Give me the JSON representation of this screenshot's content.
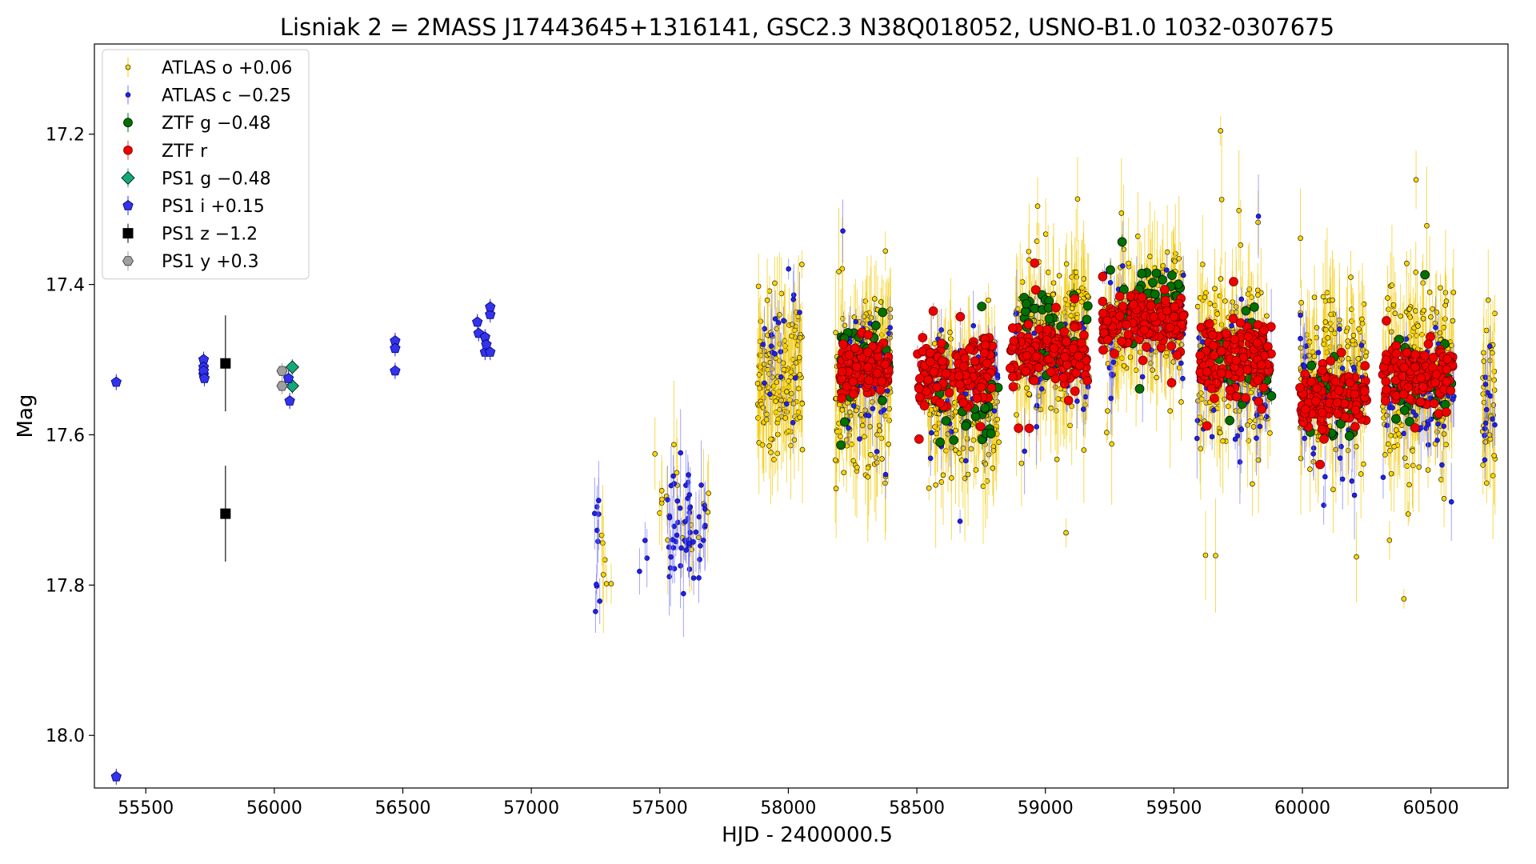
{
  "chart_data": {
    "type": "scatter",
    "title": "Lisniak 2 = 2MASS J17443645+1316141, GSC2.3 N38Q018052, USNO-B1.0 1032-0307675",
    "xlabel": "HJD - 2400000.5",
    "ylabel": "Mag",
    "xlim": [
      55300,
      60800
    ],
    "ylim": [
      18.07,
      17.08
    ],
    "y_inverted": true,
    "xticks": [
      55500,
      56000,
      56500,
      57000,
      57500,
      58000,
      58500,
      59000,
      59500,
      60000,
      60500
    ],
    "xtick_labels": [
      "55500",
      "56000",
      "56500",
      "57000",
      "57500",
      "58000",
      "58500",
      "59000",
      "59500",
      "60000",
      "60500"
    ],
    "yticks": [
      17.2,
      17.4,
      17.6,
      17.8,
      18.0
    ],
    "ytick_labels": [
      "17.2",
      "17.4",
      "17.6",
      "17.8",
      "18.0"
    ],
    "grid": false,
    "legend_position": "top-left",
    "series": [
      {
        "name": "ATLAS o +0.06",
        "marker": "circle-small",
        "color": "#ffd700",
        "edge": "#000000",
        "errcolor": "#f2c800",
        "seasons": [
          {
            "x": [
              57240,
              57320
            ],
            "center": 17.76,
            "spread": 0.06,
            "count": 6
          },
          {
            "x": [
              57480,
              57690
            ],
            "center": 17.7,
            "spread": 0.09,
            "count": 20
          },
          {
            "x": [
              57880,
              58060
            ],
            "center": 17.52,
            "spread": 0.08,
            "count": 150
          },
          {
            "x": [
              58180,
              58400
            ],
            "center": 17.53,
            "spread": 0.1,
            "count": 170
          },
          {
            "x": [
              58540,
              58820
            ],
            "center": 17.56,
            "spread": 0.08,
            "count": 170
          },
          {
            "x": [
              58880,
              59170
            ],
            "center": 17.48,
            "spread": 0.08,
            "count": 200
          },
          {
            "x": [
              59230,
              59540
            ],
            "center": 17.45,
            "spread": 0.06,
            "count": 200
          },
          {
            "x": [
              59590,
              59880
            ],
            "center": 17.5,
            "spread": 0.09,
            "count": 200
          },
          {
            "x": [
              59990,
              60250
            ],
            "center": 17.52,
            "spread": 0.09,
            "count": 170
          },
          {
            "x": [
              60310,
              60590
            ],
            "center": 17.52,
            "spread": 0.1,
            "count": 190
          },
          {
            "x": [
              60700,
              60750
            ],
            "center": 17.55,
            "spread": 0.08,
            "count": 40
          }
        ]
      },
      {
        "name": "ATLAS c −0.25",
        "marker": "circle-small",
        "color": "#2222dd",
        "edge": "#000088",
        "errcolor": "#7777ff",
        "seasons": [
          {
            "x": [
              57240,
              57270
            ],
            "center": 17.76,
            "spread": 0.08,
            "count": 10
          },
          {
            "x": [
              57420,
              57450
            ],
            "center": 17.76,
            "spread": 0.03,
            "count": 3
          },
          {
            "x": [
              57530,
              57680
            ],
            "center": 17.72,
            "spread": 0.08,
            "count": 55
          },
          {
            "x": [
              57900,
              58050
            ],
            "center": 17.48,
            "spread": 0.06,
            "count": 20
          },
          {
            "x": [
              58200,
              58400
            ],
            "center": 17.52,
            "spread": 0.08,
            "count": 40
          },
          {
            "x": [
              58540,
              58820
            ],
            "center": 17.55,
            "spread": 0.07,
            "count": 45
          },
          {
            "x": [
              58880,
              59170
            ],
            "center": 17.5,
            "spread": 0.07,
            "count": 45
          },
          {
            "x": [
              59230,
              59540
            ],
            "center": 17.46,
            "spread": 0.06,
            "count": 45
          },
          {
            "x": [
              59590,
              59880
            ],
            "center": 17.52,
            "spread": 0.08,
            "count": 55
          },
          {
            "x": [
              59990,
              60250
            ],
            "center": 17.55,
            "spread": 0.08,
            "count": 45
          },
          {
            "x": [
              60310,
              60590
            ],
            "center": 17.55,
            "spread": 0.07,
            "count": 45
          },
          {
            "x": [
              60700,
              60750
            ],
            "center": 17.56,
            "spread": 0.07,
            "count": 12
          }
        ]
      },
      {
        "name": "ZTF g −0.48",
        "marker": "circle",
        "color": "#007000",
        "edge": "#000000",
        "errcolor": "#007000",
        "seasons": [
          {
            "x": [
              58200,
              58400
            ],
            "center": 17.5,
            "spread": 0.05,
            "count": 30
          },
          {
            "x": [
              58560,
              58820
            ],
            "center": 17.55,
            "spread": 0.05,
            "count": 35
          },
          {
            "x": [
              58890,
              59170
            ],
            "center": 17.47,
            "spread": 0.05,
            "count": 40
          },
          {
            "x": [
              59240,
              59530
            ],
            "center": 17.42,
            "spread": 0.04,
            "count": 40
          },
          {
            "x": [
              59600,
              59880
            ],
            "center": 17.5,
            "spread": 0.05,
            "count": 40
          },
          {
            "x": [
              60000,
              60240
            ],
            "center": 17.55,
            "spread": 0.05,
            "count": 35
          },
          {
            "x": [
              60320,
              60580
            ],
            "center": 17.53,
            "spread": 0.05,
            "count": 35
          }
        ]
      },
      {
        "name": "ZTF r",
        "marker": "circle",
        "color": "#ee0000",
        "edge": "#660000",
        "errcolor": "#ee3333",
        "seasons": [
          {
            "x": [
              58200,
              58390
            ],
            "center": 17.51,
            "spread": 0.03,
            "count": 120
          },
          {
            "x": [
              58500,
              58800
            ],
            "center": 17.52,
            "spread": 0.035,
            "count": 140
          },
          {
            "x": [
              58860,
              59170
            ],
            "center": 17.49,
            "spread": 0.035,
            "count": 150
          },
          {
            "x": [
              59220,
              59540
            ],
            "center": 17.45,
            "spread": 0.03,
            "count": 160
          },
          {
            "x": [
              59600,
              59880
            ],
            "center": 17.5,
            "spread": 0.04,
            "count": 150
          },
          {
            "x": [
              59990,
              60250
            ],
            "center": 17.55,
            "spread": 0.03,
            "count": 140
          },
          {
            "x": [
              60310,
              60590
            ],
            "center": 17.52,
            "spread": 0.03,
            "count": 150
          }
        ]
      },
      {
        "name": "PS1 g −0.48",
        "marker": "diamond",
        "color": "#11aa77",
        "edge": "#000000",
        "points": [
          [
            56070,
            17.51
          ],
          [
            56070,
            17.535
          ]
        ]
      },
      {
        "name": "PS1 i +0.15",
        "marker": "pentagon",
        "color": "#3333ee",
        "edge": "#000066",
        "points": [
          [
            55385,
            17.53
          ],
          [
            55385,
            18.055
          ],
          [
            55725,
            17.5
          ],
          [
            55725,
            17.51
          ],
          [
            55725,
            17.52
          ],
          [
            55725,
            17.515
          ],
          [
            55728,
            17.525
          ],
          [
            56055,
            17.525
          ],
          [
            56060,
            17.555
          ],
          [
            56470,
            17.475
          ],
          [
            56470,
            17.485
          ],
          [
            56470,
            17.515
          ],
          [
            56790,
            17.45
          ],
          [
            56795,
            17.465
          ],
          [
            56820,
            17.47
          ],
          [
            56820,
            17.49
          ],
          [
            56825,
            17.48
          ],
          [
            56840,
            17.44
          ],
          [
            56840,
            17.43
          ],
          [
            56840,
            17.49
          ]
        ]
      },
      {
        "name": "PS1 z −1.2",
        "marker": "square",
        "color": "#000000",
        "edge": "#000000",
        "points": [
          [
            55810,
            17.505
          ],
          [
            55810,
            17.705
          ]
        ]
      },
      {
        "name": "PS1 y +0.3",
        "marker": "hexagon",
        "color": "#a0a0a0",
        "edge": "#333333",
        "points": [
          [
            56030,
            17.515
          ],
          [
            56030,
            17.535
          ]
        ]
      }
    ]
  }
}
